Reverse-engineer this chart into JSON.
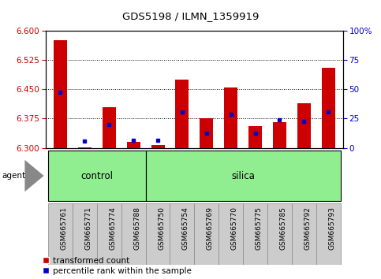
{
  "title": "GDS5198 / ILMN_1359919",
  "samples": [
    "GSM665761",
    "GSM665771",
    "GSM665774",
    "GSM665788",
    "GSM665750",
    "GSM665754",
    "GSM665769",
    "GSM665770",
    "GSM665775",
    "GSM665785",
    "GSM665792",
    "GSM665793"
  ],
  "groups": [
    "control",
    "control",
    "control",
    "control",
    "silica",
    "silica",
    "silica",
    "silica",
    "silica",
    "silica",
    "silica",
    "silica"
  ],
  "red_values": [
    6.575,
    6.302,
    6.405,
    6.315,
    6.308,
    6.475,
    6.375,
    6.455,
    6.355,
    6.365,
    6.415,
    6.505
  ],
  "blue_values": [
    6.443,
    6.317,
    6.36,
    6.319,
    6.319,
    6.393,
    6.337,
    6.385,
    6.337,
    6.372,
    6.367,
    6.393
  ],
  "ylim_left": [
    6.3,
    6.6
  ],
  "ylim_right": [
    0,
    100
  ],
  "yticks_left": [
    6.3,
    6.375,
    6.45,
    6.525,
    6.6
  ],
  "yticks_right": [
    0,
    25,
    50,
    75,
    100
  ],
  "bar_color": "#CC0000",
  "blue_color": "#0000CC",
  "base": 6.3,
  "agent_label": "agent",
  "legend_red": "transformed count",
  "legend_blue": "percentile rank within the sample",
  "control_count": 4,
  "silica_count": 8,
  "tick_label_color_left": "#CC0000",
  "tick_label_color_right": "#0000CC",
  "group_fill": "#90EE90",
  "xticklabel_bg": "#CCCCCC",
  "fig_width": 4.83,
  "fig_height": 3.54
}
